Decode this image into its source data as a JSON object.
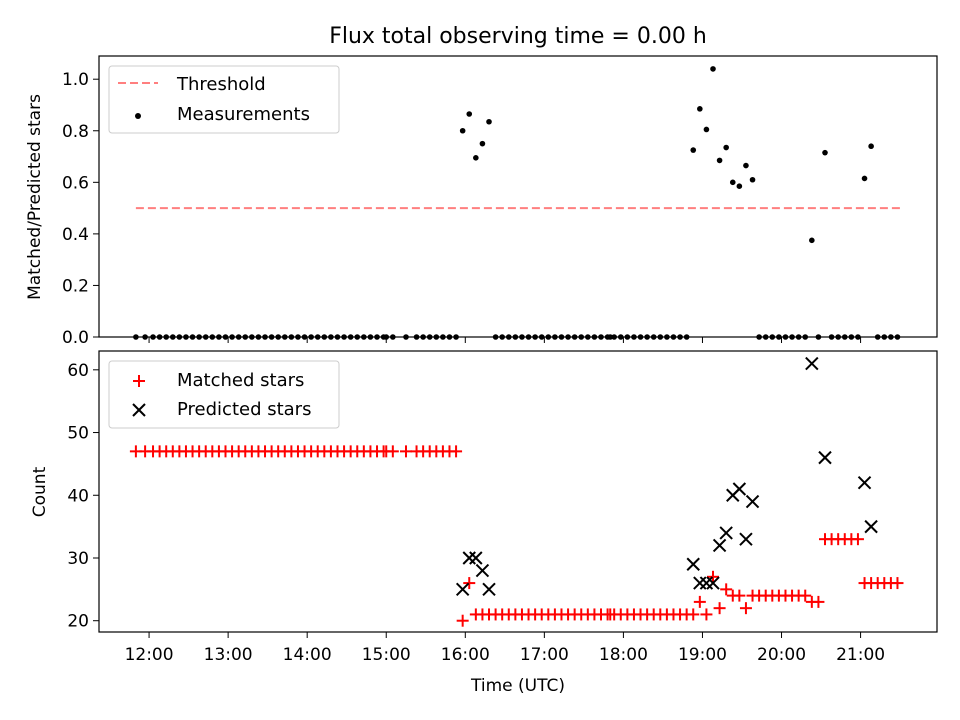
{
  "title": "Flux total observing time = 0.00 h",
  "chart_data": [
    {
      "type": "scatter",
      "ylabel": "Matched/Predicted stars",
      "ylim": [
        0,
        1.09
      ],
      "yticks": [
        0.0,
        0.2,
        0.4,
        0.6,
        0.8,
        1.0
      ],
      "ytick_labels": [
        "0.0",
        "0.2",
        "0.4",
        "0.6",
        "0.8",
        "1.0"
      ],
      "legend": {
        "placement": "top-left",
        "entries": [
          "Threshold",
          "Measurements"
        ]
      },
      "threshold": {
        "name": "Threshold",
        "value": 0.5,
        "x_range": [
          "11:50",
          "21:30"
        ],
        "color": "#ff7f7f"
      },
      "measurements": {
        "name": "Measurements",
        "color": "#000000",
        "points": [
          [
            "11:50",
            0
          ],
          [
            "11:57",
            0
          ],
          [
            "12:03",
            0
          ],
          [
            "12:08",
            0
          ],
          [
            "12:13",
            0
          ],
          [
            "12:18",
            0
          ],
          [
            "12:23",
            0
          ],
          [
            "12:28",
            0
          ],
          [
            "12:33",
            0
          ],
          [
            "12:38",
            0
          ],
          [
            "12:43",
            0
          ],
          [
            "12:48",
            0
          ],
          [
            "12:53",
            0
          ],
          [
            "12:58",
            0
          ],
          [
            "13:03",
            0
          ],
          [
            "13:08",
            0
          ],
          [
            "13:13",
            0
          ],
          [
            "13:18",
            0
          ],
          [
            "13:23",
            0
          ],
          [
            "13:28",
            0
          ],
          [
            "13:33",
            0
          ],
          [
            "13:38",
            0
          ],
          [
            "13:43",
            0
          ],
          [
            "13:48",
            0
          ],
          [
            "13:53",
            0
          ],
          [
            "13:58",
            0
          ],
          [
            "14:03",
            0
          ],
          [
            "14:08",
            0
          ],
          [
            "14:13",
            0
          ],
          [
            "14:18",
            0
          ],
          [
            "14:23",
            0
          ],
          [
            "14:28",
            0
          ],
          [
            "14:33",
            0
          ],
          [
            "14:38",
            0
          ],
          [
            "14:43",
            0
          ],
          [
            "14:48",
            0
          ],
          [
            "14:53",
            0
          ],
          [
            "14:58",
            0
          ],
          [
            "15:00",
            0
          ],
          [
            "15:05",
            0
          ],
          [
            "15:15",
            0
          ],
          [
            "15:23",
            0
          ],
          [
            "15:28",
            0
          ],
          [
            "15:33",
            0
          ],
          [
            "15:38",
            0
          ],
          [
            "15:43",
            0
          ],
          [
            "15:48",
            0
          ],
          [
            "15:53",
            0
          ],
          [
            "15:58",
            0.8
          ],
          [
            "16:03",
            0.865
          ],
          [
            "16:08",
            0.695
          ],
          [
            "16:13",
            0.75
          ],
          [
            "16:18",
            0.835
          ],
          [
            "16:23",
            0
          ],
          [
            "16:28",
            0
          ],
          [
            "16:33",
            0
          ],
          [
            "16:38",
            0
          ],
          [
            "16:43",
            0
          ],
          [
            "16:48",
            0
          ],
          [
            "16:53",
            0
          ],
          [
            "16:58",
            0
          ],
          [
            "17:03",
            0
          ],
          [
            "17:08",
            0
          ],
          [
            "17:13",
            0
          ],
          [
            "17:18",
            0
          ],
          [
            "17:23",
            0
          ],
          [
            "17:28",
            0
          ],
          [
            "17:33",
            0
          ],
          [
            "17:38",
            0
          ],
          [
            "17:43",
            0
          ],
          [
            "17:48",
            0
          ],
          [
            "17:50",
            0
          ],
          [
            "17:53",
            0
          ],
          [
            "17:58",
            0
          ],
          [
            "18:03",
            0
          ],
          [
            "18:08",
            0
          ],
          [
            "18:13",
            0
          ],
          [
            "18:18",
            0
          ],
          [
            "18:23",
            0
          ],
          [
            "18:28",
            0
          ],
          [
            "18:33",
            0
          ],
          [
            "18:38",
            0
          ],
          [
            "18:43",
            0
          ],
          [
            "18:48",
            0
          ],
          [
            "18:53",
            0.725
          ],
          [
            "18:58",
            0.885
          ],
          [
            "19:03",
            0.805
          ],
          [
            "19:08",
            1.04
          ],
          [
            "19:13",
            0.685
          ],
          [
            "19:18",
            0.735
          ],
          [
            "19:23",
            0.6
          ],
          [
            "19:28",
            0.585
          ],
          [
            "19:33",
            0.665
          ],
          [
            "19:38",
            0.61
          ],
          [
            "19:43",
            0
          ],
          [
            "19:48",
            0
          ],
          [
            "19:53",
            0
          ],
          [
            "19:58",
            0
          ],
          [
            "20:03",
            0
          ],
          [
            "20:08",
            0
          ],
          [
            "20:13",
            0
          ],
          [
            "20:18",
            0
          ],
          [
            "20:23",
            0.375
          ],
          [
            "20:28",
            0
          ],
          [
            "20:33",
            0.715
          ],
          [
            "20:38",
            0
          ],
          [
            "20:43",
            0
          ],
          [
            "20:48",
            0
          ],
          [
            "20:53",
            0
          ],
          [
            "20:58",
            0
          ],
          [
            "21:03",
            0.615
          ],
          [
            "21:08",
            0.74
          ],
          [
            "21:13",
            0
          ],
          [
            "21:18",
            0
          ],
          [
            "21:23",
            0
          ],
          [
            "21:28",
            0
          ]
        ]
      }
    },
    {
      "type": "scatter",
      "xlabel": "Time (UTC)",
      "ylabel": "Count",
      "ylim": [
        18.2,
        63.0
      ],
      "yticks": [
        20,
        30,
        40,
        50,
        60
      ],
      "ytick_labels": [
        "20",
        "30",
        "40",
        "50",
        "60"
      ],
      "xlim": [
        "11:22",
        "21:58"
      ],
      "xticks": [
        "12:00",
        "13:00",
        "14:00",
        "15:00",
        "16:00",
        "17:00",
        "18:00",
        "19:00",
        "20:00",
        "21:00"
      ],
      "legend": {
        "placement": "top-left",
        "entries": [
          "Matched stars",
          "Predicted stars"
        ]
      },
      "series": [
        {
          "name": "Matched stars",
          "marker": "+",
          "color": "#ff0000",
          "points": [
            [
              "11:50",
              47
            ],
            [
              "11:57",
              47
            ],
            [
              "12:03",
              47
            ],
            [
              "12:08",
              47
            ],
            [
              "12:13",
              47
            ],
            [
              "12:18",
              47
            ],
            [
              "12:23",
              47
            ],
            [
              "12:28",
              47
            ],
            [
              "12:33",
              47
            ],
            [
              "12:38",
              47
            ],
            [
              "12:43",
              47
            ],
            [
              "12:48",
              47
            ],
            [
              "12:53",
              47
            ],
            [
              "12:58",
              47
            ],
            [
              "13:03",
              47
            ],
            [
              "13:08",
              47
            ],
            [
              "13:13",
              47
            ],
            [
              "13:18",
              47
            ],
            [
              "13:23",
              47
            ],
            [
              "13:28",
              47
            ],
            [
              "13:33",
              47
            ],
            [
              "13:38",
              47
            ],
            [
              "13:43",
              47
            ],
            [
              "13:48",
              47
            ],
            [
              "13:53",
              47
            ],
            [
              "13:58",
              47
            ],
            [
              "14:03",
              47
            ],
            [
              "14:08",
              47
            ],
            [
              "14:13",
              47
            ],
            [
              "14:18",
              47
            ],
            [
              "14:23",
              47
            ],
            [
              "14:28",
              47
            ],
            [
              "14:33",
              47
            ],
            [
              "14:38",
              47
            ],
            [
              "14:43",
              47
            ],
            [
              "14:48",
              47
            ],
            [
              "14:53",
              47
            ],
            [
              "14:58",
              47
            ],
            [
              "15:00",
              47
            ],
            [
              "15:05",
              47
            ],
            [
              "15:15",
              47
            ],
            [
              "15:23",
              47
            ],
            [
              "15:28",
              47
            ],
            [
              "15:33",
              47
            ],
            [
              "15:38",
              47
            ],
            [
              "15:43",
              47
            ],
            [
              "15:48",
              47
            ],
            [
              "15:53",
              47
            ],
            [
              "15:58",
              20
            ],
            [
              "16:03",
              26
            ],
            [
              "16:08",
              21
            ],
            [
              "16:13",
              21
            ],
            [
              "16:18",
              21
            ],
            [
              "16:23",
              21
            ],
            [
              "16:28",
              21
            ],
            [
              "16:33",
              21
            ],
            [
              "16:38",
              21
            ],
            [
              "16:43",
              21
            ],
            [
              "16:48",
              21
            ],
            [
              "16:53",
              21
            ],
            [
              "16:58",
              21
            ],
            [
              "17:03",
              21
            ],
            [
              "17:08",
              21
            ],
            [
              "17:13",
              21
            ],
            [
              "17:18",
              21
            ],
            [
              "17:23",
              21
            ],
            [
              "17:28",
              21
            ],
            [
              "17:33",
              21
            ],
            [
              "17:38",
              21
            ],
            [
              "17:43",
              21
            ],
            [
              "17:48",
              21
            ],
            [
              "17:50",
              21
            ],
            [
              "17:53",
              21
            ],
            [
              "17:58",
              21
            ],
            [
              "18:03",
              21
            ],
            [
              "18:08",
              21
            ],
            [
              "18:13",
              21
            ],
            [
              "18:18",
              21
            ],
            [
              "18:23",
              21
            ],
            [
              "18:28",
              21
            ],
            [
              "18:33",
              21
            ],
            [
              "18:38",
              21
            ],
            [
              "18:43",
              21
            ],
            [
              "18:48",
              21
            ],
            [
              "18:53",
              21
            ],
            [
              "18:58",
              23
            ],
            [
              "19:03",
              21
            ],
            [
              "19:08",
              27
            ],
            [
              "19:13",
              22
            ],
            [
              "19:18",
              25
            ],
            [
              "19:23",
              24
            ],
            [
              "19:28",
              24
            ],
            [
              "19:33",
              22
            ],
            [
              "19:38",
              24
            ],
            [
              "19:43",
              24
            ],
            [
              "19:48",
              24
            ],
            [
              "19:53",
              24
            ],
            [
              "19:58",
              24
            ],
            [
              "20:03",
              24
            ],
            [
              "20:08",
              24
            ],
            [
              "20:13",
              24
            ],
            [
              "20:18",
              24
            ],
            [
              "20:23",
              23
            ],
            [
              "20:28",
              23
            ],
            [
              "20:33",
              33
            ],
            [
              "20:38",
              33
            ],
            [
              "20:43",
              33
            ],
            [
              "20:48",
              33
            ],
            [
              "20:53",
              33
            ],
            [
              "20:58",
              33
            ],
            [
              "21:03",
              26
            ],
            [
              "21:08",
              26
            ],
            [
              "21:13",
              26
            ],
            [
              "21:18",
              26
            ],
            [
              "21:23",
              26
            ],
            [
              "21:28",
              26
            ]
          ]
        },
        {
          "name": "Predicted stars",
          "marker": "x",
          "color": "#000000",
          "points": [
            [
              "15:58",
              25
            ],
            [
              "16:03",
              30
            ],
            [
              "16:08",
              30
            ],
            [
              "16:13",
              28
            ],
            [
              "16:18",
              25
            ],
            [
              "18:53",
              29
            ],
            [
              "18:58",
              26
            ],
            [
              "19:03",
              26
            ],
            [
              "19:08",
              26
            ],
            [
              "19:13",
              32
            ],
            [
              "19:18",
              34
            ],
            [
              "19:23",
              40
            ],
            [
              "19:28",
              41
            ],
            [
              "19:33",
              33
            ],
            [
              "19:38",
              39
            ],
            [
              "20:23",
              61
            ],
            [
              "20:33",
              46
            ],
            [
              "21:03",
              42
            ],
            [
              "21:08",
              35
            ]
          ]
        }
      ]
    }
  ]
}
